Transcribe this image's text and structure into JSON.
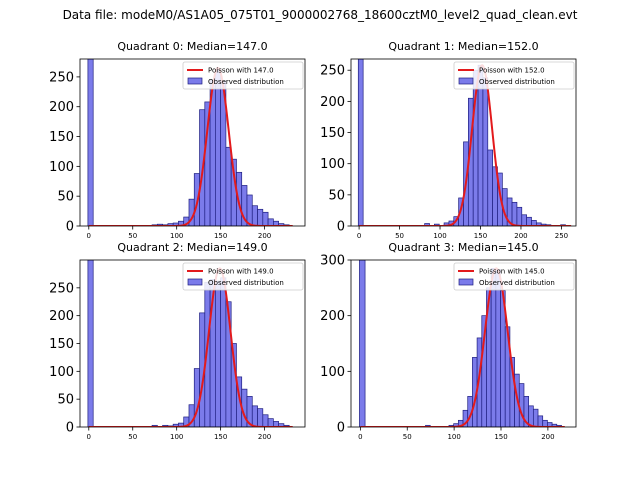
{
  "suptitle": "Data file: modeM0/AS1A05_075T01_9000002768_18600cztM0_level2_quad_clean.evt",
  "colors": {
    "bar_fill": "#7b7bea",
    "bar_edge": "#1f1f80",
    "poisson_line": "#e31a1c",
    "axis": "#000000",
    "legend_border": "#cccccc"
  },
  "chart_data": [
    {
      "type": "bar",
      "title": "Quadrant 0: Median=147.0",
      "xlim": [
        -10,
        246
      ],
      "ylim": [
        0,
        280
      ],
      "xticks": [
        0,
        50,
        100,
        150,
        200
      ],
      "yticks": [
        0,
        50,
        100,
        150,
        200,
        250
      ],
      "legend": [
        "Poisson with 147.0",
        "Observed distribution"
      ],
      "legend_position": "top-right",
      "bin_width": 6,
      "zero_bin": {
        "x": 0,
        "value": 280
      },
      "bins": [
        {
          "x": 75,
          "value": 2
        },
        {
          "x": 81,
          "value": 3
        },
        {
          "x": 87,
          "value": 2
        },
        {
          "x": 93,
          "value": 4
        },
        {
          "x": 99,
          "value": 5
        },
        {
          "x": 105,
          "value": 8
        },
        {
          "x": 111,
          "value": 15
        },
        {
          "x": 117,
          "value": 45
        },
        {
          "x": 123,
          "value": 88
        },
        {
          "x": 129,
          "value": 195
        },
        {
          "x": 135,
          "value": 208
        },
        {
          "x": 141,
          "value": 245
        },
        {
          "x": 147,
          "value": 262
        },
        {
          "x": 153,
          "value": 243
        },
        {
          "x": 159,
          "value": 132
        },
        {
          "x": 165,
          "value": 112
        },
        {
          "x": 171,
          "value": 90
        },
        {
          "x": 177,
          "value": 68
        },
        {
          "x": 183,
          "value": 52
        },
        {
          "x": 189,
          "value": 34
        },
        {
          "x": 195,
          "value": 28
        },
        {
          "x": 201,
          "value": 23
        },
        {
          "x": 207,
          "value": 12
        },
        {
          "x": 213,
          "value": 8
        },
        {
          "x": 219,
          "value": 4
        },
        {
          "x": 225,
          "value": 2
        }
      ],
      "poisson": {
        "mu": 147.0,
        "peak": 265,
        "range": [
          0,
          232
        ]
      }
    },
    {
      "type": "bar",
      "title": "Quadrant 1: Median=152.0",
      "xlim": [
        -10,
        268
      ],
      "ylim": [
        0,
        268
      ],
      "xticks": [
        0,
        50,
        100,
        150,
        200,
        250
      ],
      "yticks": [
        0,
        50,
        100,
        150,
        200,
        250
      ],
      "legend": [
        "Poisson with 152.0",
        "Observed distribution"
      ],
      "legend_position": "top-right",
      "bin_width": 6,
      "zero_bin": {
        "x": 0,
        "value": 268
      },
      "bins": [
        {
          "x": 84,
          "value": 4
        },
        {
          "x": 96,
          "value": 3
        },
        {
          "x": 108,
          "value": 5
        },
        {
          "x": 114,
          "value": 8
        },
        {
          "x": 120,
          "value": 15
        },
        {
          "x": 126,
          "value": 45
        },
        {
          "x": 132,
          "value": 135
        },
        {
          "x": 138,
          "value": 205
        },
        {
          "x": 144,
          "value": 250
        },
        {
          "x": 150,
          "value": 258
        },
        {
          "x": 156,
          "value": 238
        },
        {
          "x": 162,
          "value": 122
        },
        {
          "x": 168,
          "value": 95
        },
        {
          "x": 174,
          "value": 85
        },
        {
          "x": 180,
          "value": 60
        },
        {
          "x": 186,
          "value": 45
        },
        {
          "x": 192,
          "value": 38
        },
        {
          "x": 198,
          "value": 30
        },
        {
          "x": 204,
          "value": 18
        },
        {
          "x": 210,
          "value": 14
        },
        {
          "x": 216,
          "value": 9
        },
        {
          "x": 222,
          "value": 5
        },
        {
          "x": 228,
          "value": 3
        },
        {
          "x": 234,
          "value": 2
        },
        {
          "x": 252,
          "value": 2
        }
      ],
      "poisson": {
        "mu": 152.0,
        "peak": 258,
        "range": [
          0,
          262
        ]
      }
    },
    {
      "type": "bar",
      "title": "Quadrant 2: Median=149.0",
      "xlim": [
        -10,
        246
      ],
      "ylim": [
        0,
        300
      ],
      "xticks": [
        0,
        50,
        100,
        150,
        200
      ],
      "yticks": [
        0,
        50,
        100,
        150,
        200,
        250
      ],
      "legend": [
        "Poisson with 149.0",
        "Observed distribution"
      ],
      "legend_position": "top-right",
      "bin_width": 6,
      "zero_bin": {
        "x": 0,
        "value": 300
      },
      "bins": [
        {
          "x": 75,
          "value": 3
        },
        {
          "x": 87,
          "value": 3
        },
        {
          "x": 93,
          "value": 2
        },
        {
          "x": 99,
          "value": 5
        },
        {
          "x": 105,
          "value": 7
        },
        {
          "x": 111,
          "value": 18
        },
        {
          "x": 117,
          "value": 40
        },
        {
          "x": 123,
          "value": 105
        },
        {
          "x": 129,
          "value": 205
        },
        {
          "x": 135,
          "value": 260
        },
        {
          "x": 141,
          "value": 265
        },
        {
          "x": 147,
          "value": 262
        },
        {
          "x": 153,
          "value": 268
        },
        {
          "x": 159,
          "value": 225
        },
        {
          "x": 165,
          "value": 150
        },
        {
          "x": 171,
          "value": 90
        },
        {
          "x": 177,
          "value": 68
        },
        {
          "x": 183,
          "value": 55
        },
        {
          "x": 189,
          "value": 38
        },
        {
          "x": 195,
          "value": 33
        },
        {
          "x": 201,
          "value": 22
        },
        {
          "x": 207,
          "value": 15
        },
        {
          "x": 213,
          "value": 10
        },
        {
          "x": 219,
          "value": 6
        },
        {
          "x": 225,
          "value": 3
        }
      ],
      "poisson": {
        "mu": 149.0,
        "peak": 285,
        "range": [
          0,
          232
        ]
      }
    },
    {
      "type": "bar",
      "title": "Quadrant 3: Median=145.0",
      "xlim": [
        -10,
        230
      ],
      "ylim": [
        0,
        300
      ],
      "xticks": [
        0,
        50,
        100,
        150,
        200
      ],
      "yticks": [
        0,
        100,
        200,
        300
      ],
      "legend": [
        "Poisson with 145.0",
        "Observed distribution"
      ],
      "legend_position": "top-right",
      "bin_width": 5,
      "zero_bin": {
        "x": 0,
        "value": 300
      },
      "bins": [
        {
          "x": 72,
          "value": 3
        },
        {
          "x": 97,
          "value": 3
        },
        {
          "x": 102,
          "value": 6
        },
        {
          "x": 107,
          "value": 12
        },
        {
          "x": 112,
          "value": 30
        },
        {
          "x": 117,
          "value": 55
        },
        {
          "x": 122,
          "value": 125
        },
        {
          "x": 127,
          "value": 160
        },
        {
          "x": 132,
          "value": 200
        },
        {
          "x": 137,
          "value": 250
        },
        {
          "x": 142,
          "value": 285
        },
        {
          "x": 147,
          "value": 283
        },
        {
          "x": 152,
          "value": 245
        },
        {
          "x": 157,
          "value": 180
        },
        {
          "x": 162,
          "value": 125
        },
        {
          "x": 167,
          "value": 95
        },
        {
          "x": 172,
          "value": 78
        },
        {
          "x": 177,
          "value": 55
        },
        {
          "x": 182,
          "value": 38
        },
        {
          "x": 187,
          "value": 32
        },
        {
          "x": 192,
          "value": 20
        },
        {
          "x": 197,
          "value": 12
        },
        {
          "x": 202,
          "value": 8
        },
        {
          "x": 207,
          "value": 5
        },
        {
          "x": 212,
          "value": 3
        }
      ],
      "poisson": {
        "mu": 145.0,
        "peak": 285,
        "range": [
          0,
          218
        ]
      }
    }
  ]
}
